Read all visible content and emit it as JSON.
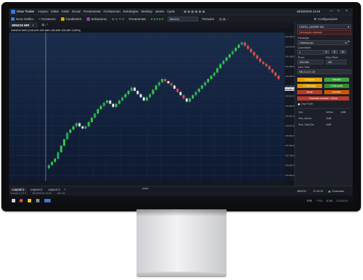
{
  "app": {
    "name": "Clear Trader",
    "menu": [
      "Arquivo",
      "Editar",
      "Exibir",
      "Enviar",
      "Ferramentas",
      "Fechamento",
      "Estratégias",
      "Desktop",
      "Janela",
      "Ajuda"
    ],
    "config_label": "Configurações",
    "datetime": "16/10/2019 14:43"
  },
  "toolbar": {
    "items": [
      "Novo Gráfico",
      "+ Ferrament.",
      "Candlestick",
      "Indicadores",
      "Ferramentas",
      "Periodos"
    ],
    "symbol": "WINZ19"
  },
  "chart_tab": {
    "label": "WINZ19 60R",
    "ohlc_line": "WINZ19 60R [105.625  105.650  105.585  105.650 0,05%]"
  },
  "price_axis": {
    "labels": [
      "106.290,00",
      "106.244,00",
      "106.198,00",
      "106.152,00",
      "106.106,00",
      "106.060,00",
      "106.014,00",
      "105.968,00",
      "105.922,00",
      "105.876,00",
      "105.830,00",
      "105.784,00",
      "105.738,00",
      "105.692,00",
      "105.646,00"
    ],
    "last_price": "106.085,00"
  },
  "time_axis": {
    "labels": [
      "14:48",
      "14:56",
      "15:01",
      "15:03",
      "15:17",
      "15:22",
      "15:29",
      "15:35",
      "15:40",
      "15:45",
      "15:57",
      "16:08",
      "16:17",
      "16:26",
      "16:42",
      "16:51",
      "17:01",
      "17:08",
      "17:19",
      "17:26",
      "17:42"
    ],
    "level_label": "Level"
  },
  "chart_data": {
    "type": "renko",
    "up_color": "#2ecc40",
    "down_color": "#e8e8e8",
    "up_alt_color": "#27ae60",
    "bear_red_color": "#e74c3c",
    "closes": [
      105700,
      105715,
      105730,
      105760,
      105790,
      105820,
      105850,
      105865,
      105880,
      105895,
      105880,
      105870,
      105880,
      105900,
      105920,
      105940,
      105960,
      105975,
      105990,
      106000,
      105985,
      105970,
      105985,
      106000,
      106015,
      106030,
      106045,
      106060,
      106045,
      106030,
      106015,
      106000,
      106015,
      106030,
      106050,
      106070,
      106085,
      106100,
      106090,
      106080,
      106070,
      106055,
      106040,
      106025,
      106010,
      105995,
      106010,
      106025,
      106040,
      106055,
      106070,
      106085,
      106100,
      106115,
      106130,
      106150,
      106170,
      106185,
      106200,
      106215,
      106230,
      106245,
      106260,
      106270,
      106255,
      106240,
      106225,
      106210,
      106195,
      106180,
      106170,
      106160,
      106145,
      106130,
      106115,
      106100
    ]
  },
  "order_panel": {
    "symbol": "CDES1 | ANDRE AM",
    "account_label": "Selecionar conta",
    "account_value": "Simulação validada",
    "strategy_label": "Estratégia",
    "strategy_value": "<Nenhuma>",
    "quantity_label": "Quantidade",
    "quantity_value": "1",
    "qty_chips": [
      "1",
      "2",
      "5"
    ],
    "price_label": "Preço",
    "stop_offset_label": "Stop Offset",
    "price_value": "106.085",
    "stop_offset_value": "150",
    "total_label": "Valor Total",
    "total_value": "R$ 21.217,00",
    "buy_label": "Comprar",
    "sell_label": "Vender",
    "buy_market_label": "C.Mercado",
    "sell_market_label": "V.Mercado",
    "zero_label": "Zerar",
    "invert_label": "Inverter",
    "cancel_zero_label": "Cancelar ordens + Zerar",
    "day_trade_label": "Day Trade",
    "qty_stat_label": "Qtd.",
    "avg_label": "Médio",
    "avg_value": "0,00",
    "open_result_label": "Res. Aberto",
    "open_result_value": "0,00",
    "day_total_label": "Res. Total Dia",
    "day_total_value": "0,00"
  },
  "bottom": {
    "tabs": [
      "Layout 1",
      "Layout 2",
      "Layout 3"
    ],
    "version": "Versão 5.3.0.5",
    "date": "16/10/2019 14:43",
    "latency": "140 ms",
    "symbol": "WINZ19",
    "server_time": "07:43:15",
    "status": "Conectado"
  },
  "taskbar": {
    "lang": "POR",
    "lang2": "PTB2",
    "clock_time": "07:43",
    "clock_date": "17/10/2019"
  },
  "colors": {
    "buy": "#e6a400",
    "sell": "#3fa23f",
    "buy_market": "#d99600",
    "sell_market": "#2f8f2f",
    "zero": "#c0392b",
    "invert": "#d35400",
    "cancel": "#c0392b",
    "accent": "#2d7fd8",
    "connected": "#2ecc40"
  }
}
